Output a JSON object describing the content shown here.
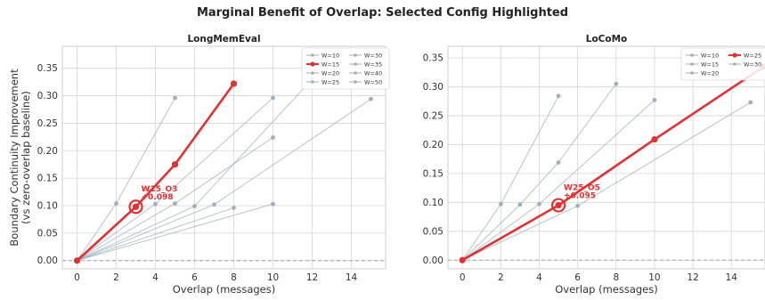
{
  "figure_title": "Marginal Benefit of Overlap: Selected Config Highlighted",
  "colors": {
    "highlight": "#e03232",
    "series": "#9fb0bd",
    "grid": "#d6d6d6",
    "baseline": "#9aa6b1"
  },
  "chart_data": [
    {
      "type": "line",
      "title": "LongMemEval",
      "xlabel": "Overlap (messages)",
      "ylabel": "Boundary Continuity Improvement",
      "ylabel2": "(vs zero-overlap baseline)",
      "xlim": [
        -0.75,
        15.75
      ],
      "ylim": [
        -0.015,
        0.39
      ],
      "xticks": [
        0,
        2,
        4,
        6,
        8,
        10,
        12,
        14
      ],
      "yticks": [
        0.0,
        0.05,
        0.1,
        0.15,
        0.2,
        0.25,
        0.3,
        0.35
      ],
      "ytick_labels": [
        "0.00",
        "0.05",
        "0.10",
        "0.15",
        "0.20",
        "0.25",
        "0.30",
        "0.35"
      ],
      "grid": true,
      "legend_position": "top-right",
      "legend_cols": 2,
      "series": [
        {
          "name": "W=10",
          "x": [
            0,
            2,
            5
          ],
          "y": [
            0.0,
            0.104,
            0.296
          ],
          "highlight": false
        },
        {
          "name": "W=15",
          "x": [
            0,
            3,
            5,
            8
          ],
          "y": [
            0.0,
            0.098,
            0.175,
            0.322
          ],
          "highlight": true
        },
        {
          "name": "W=20",
          "x": [
            0,
            4,
            10
          ],
          "y": [
            0.0,
            0.103,
            0.296
          ],
          "highlight": false
        },
        {
          "name": "W=25",
          "x": [
            0,
            5,
            10
          ],
          "y": [
            0.0,
            0.104,
            0.224
          ],
          "highlight": false
        },
        {
          "name": "W=30",
          "x": [
            0,
            6,
            12
          ],
          "y": [
            0.0,
            0.099,
            0.33
          ],
          "highlight": false
        },
        {
          "name": "W=35",
          "x": [
            0,
            7,
            15
          ],
          "y": [
            0.0,
            0.102,
            0.294
          ],
          "highlight": false
        },
        {
          "name": "W=40",
          "x": [
            0,
            8
          ],
          "y": [
            0.0,
            0.096
          ],
          "highlight": false
        },
        {
          "name": "W=50",
          "x": [
            0,
            10
          ],
          "y": [
            0.0,
            0.103
          ],
          "highlight": false
        }
      ],
      "selected": {
        "x": 3,
        "y": 0.098,
        "label": "W15_O3",
        "value_label": "+0.098"
      }
    },
    {
      "type": "line",
      "title": "LoCoMo",
      "xlabel": "Overlap (messages)",
      "ylabel": "",
      "xlim": [
        -0.75,
        15.75
      ],
      "ylim": [
        -0.015,
        0.37
      ],
      "xticks": [
        0,
        2,
        4,
        6,
        8,
        10,
        12,
        14
      ],
      "yticks": [
        0.0,
        0.05,
        0.1,
        0.15,
        0.2,
        0.25,
        0.3,
        0.35
      ],
      "ytick_labels": [
        "0.00",
        "0.05",
        "0.10",
        "0.15",
        "0.20",
        "0.25",
        "0.30",
        "0.35"
      ],
      "grid": true,
      "legend_position": "top-right",
      "legend_cols": 2,
      "series": [
        {
          "name": "W=10",
          "x": [
            0,
            2,
            5
          ],
          "y": [
            0.0,
            0.097,
            0.284
          ],
          "highlight": false
        },
        {
          "name": "W=15",
          "x": [
            0,
            3,
            5,
            8
          ],
          "y": [
            0.0,
            0.096,
            0.169,
            0.305
          ],
          "highlight": false
        },
        {
          "name": "W=20",
          "x": [
            0,
            4,
            10
          ],
          "y": [
            0.0,
            0.097,
            0.277
          ],
          "highlight": false
        },
        {
          "name": "W=25",
          "x": [
            0,
            5,
            10,
            15.7
          ],
          "y": [
            0.0,
            0.095,
            0.209,
            0.335
          ],
          "highlight": true
        },
        {
          "name": "W=30",
          "x": [
            0,
            6,
            15
          ],
          "y": [
            0.0,
            0.094,
            0.273
          ],
          "highlight": false
        }
      ],
      "legend_entries": [
        "W=10",
        "W=15",
        "W=20",
        "W=25",
        "W=30"
      ],
      "selected": {
        "x": 5,
        "y": 0.095,
        "label": "W25_O5",
        "value_label": "+0.095"
      }
    }
  ]
}
